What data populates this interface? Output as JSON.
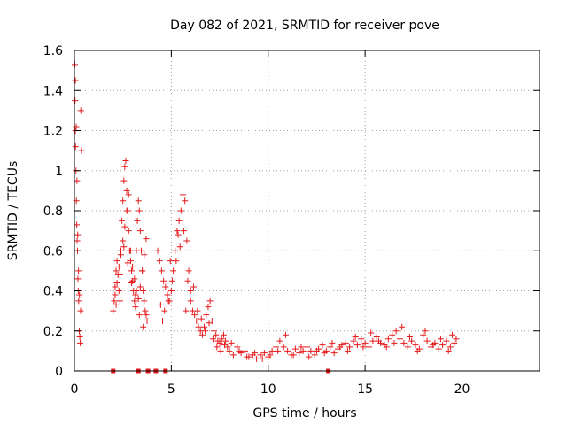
{
  "chart_data": {
    "type": "scatter",
    "title": "Day 082 of 2021, SRMTID for receiver pove",
    "xlabel": "GPS time / hours",
    "ylabel": "SRMTID / TECUs",
    "xlim": [
      0,
      24
    ],
    "ylim": [
      0,
      1.6
    ],
    "xticks": [
      0,
      5,
      10,
      15,
      20
    ],
    "yticks": [
      0,
      0.2,
      0.4,
      0.6,
      0.8,
      1,
      1.2,
      1.4,
      1.6
    ],
    "xtick_labels": [
      "0",
      "5",
      "10",
      "15",
      "20"
    ],
    "ytick_labels": [
      "0",
      "0.2",
      "0.4",
      "0.6",
      "0.8",
      "1",
      "1.2",
      "1.4",
      "1.6"
    ],
    "grid": true,
    "marker": "plus",
    "color": "#e41a1c",
    "series": [
      {
        "x": [
          0.02,
          0.03,
          0.05,
          0.06,
          0.08,
          0.1,
          0.12,
          0.14,
          0.16,
          0.18,
          0.2,
          0.22,
          0.25,
          0.28,
          0.3,
          0.33,
          0.36,
          0.05,
          0.09,
          0.13,
          0.17,
          0.21,
          0.26,
          0.32,
          2.0,
          2.05,
          2.1,
          2.15,
          2.2,
          2.25,
          2.3,
          2.35,
          2.4,
          2.45,
          2.5,
          2.55,
          2.6,
          2.65,
          2.7,
          2.75,
          2.8,
          2.85,
          2.9,
          2.95,
          3.0,
          3.05,
          3.1,
          3.15,
          3.2,
          3.25,
          3.3,
          3.35,
          3.4,
          3.45,
          3.5,
          3.55,
          3.6,
          3.65,
          3.7,
          3.75,
          2.1,
          2.2,
          2.3,
          2.4,
          2.5,
          2.6,
          2.7,
          2.8,
          2.9,
          3.0,
          3.1,
          3.2,
          3.3,
          3.4,
          3.5,
          3.6,
          3.7,
          2.15,
          2.35,
          2.55,
          2.75,
          2.95,
          3.15,
          3.35,
          3.55,
          4.3,
          4.4,
          4.5,
          4.6,
          4.7,
          4.8,
          4.9,
          5.0,
          5.1,
          5.2,
          5.3,
          5.4,
          5.5,
          5.6,
          5.7,
          5.8,
          5.9,
          6.0,
          4.45,
          4.65,
          4.85,
          5.05,
          5.25,
          5.45,
          5.65,
          5.85,
          4.55,
          4.95,
          5.35,
          5.75,
          6.0,
          6.1,
          6.2,
          6.3,
          6.4,
          6.5,
          6.6,
          6.7,
          6.8,
          6.9,
          7.0,
          7.1,
          7.2,
          7.3,
          7.4,
          7.5,
          7.6,
          7.7,
          7.8,
          7.9,
          6.15,
          6.35,
          6.55,
          6.75,
          6.95,
          7.15,
          7.35,
          7.55,
          7.75,
          8.0,
          8.2,
          8.4,
          8.6,
          8.8,
          9.0,
          9.2,
          9.4,
          9.6,
          9.8,
          10.0,
          10.2,
          10.4,
          10.6,
          10.8,
          11.0,
          11.2,
          11.4,
          11.6,
          11.8,
          12.0,
          12.2,
          12.4,
          12.6,
          12.8,
          13.0,
          13.2,
          13.4,
          13.6,
          13.8,
          8.1,
          8.5,
          8.9,
          9.3,
          9.7,
          10.1,
          10.5,
          10.9,
          11.3,
          11.7,
          12.1,
          12.5,
          12.9,
          13.3,
          13.7,
          14.0,
          14.2,
          14.4,
          14.6,
          14.8,
          15.0,
          15.2,
          15.4,
          15.6,
          15.8,
          16.0,
          16.2,
          16.4,
          16.6,
          16.8,
          17.0,
          17.2,
          17.4,
          17.6,
          17.8,
          18.0,
          18.2,
          18.4,
          18.6,
          18.8,
          19.0,
          19.2,
          19.4,
          19.6,
          19.7,
          14.1,
          14.5,
          14.9,
          15.3,
          15.7,
          16.1,
          16.5,
          16.9,
          17.3,
          17.7,
          18.1,
          18.5,
          18.9,
          19.3,
          19.5,
          2.0,
          3.3,
          3.8,
          4.2,
          4.7,
          13.1
        ],
        "y": [
          1.53,
          1.35,
          1.2,
          1.12,
          1.0,
          0.85,
          0.73,
          0.65,
          0.6,
          0.46,
          0.4,
          0.35,
          0.2,
          0.17,
          0.14,
          1.3,
          1.1,
          1.45,
          1.22,
          0.95,
          0.68,
          0.5,
          0.38,
          0.3,
          0.3,
          0.35,
          0.42,
          0.5,
          0.55,
          0.48,
          0.4,
          0.35,
          0.6,
          0.75,
          0.85,
          0.95,
          1.02,
          1.05,
          0.9,
          0.8,
          0.7,
          0.6,
          0.55,
          0.5,
          0.45,
          0.4,
          0.35,
          0.32,
          0.6,
          0.75,
          0.85,
          0.8,
          0.7,
          0.6,
          0.5,
          0.4,
          0.35,
          0.3,
          0.28,
          0.25,
          0.38,
          0.44,
          0.52,
          0.58,
          0.65,
          0.72,
          0.8,
          0.88,
          0.6,
          0.52,
          0.46,
          0.4,
          0.36,
          0.42,
          0.5,
          0.58,
          0.66,
          0.33,
          0.48,
          0.62,
          0.54,
          0.44,
          0.38,
          0.28,
          0.22,
          0.6,
          0.55,
          0.5,
          0.45,
          0.42,
          0.38,
          0.35,
          0.4,
          0.5,
          0.6,
          0.7,
          0.75,
          0.8,
          0.88,
          0.85,
          0.65,
          0.5,
          0.4,
          0.33,
          0.3,
          0.35,
          0.45,
          0.55,
          0.62,
          0.7,
          0.45,
          0.25,
          0.55,
          0.68,
          0.3,
          0.35,
          0.3,
          0.28,
          0.25,
          0.22,
          0.2,
          0.18,
          0.22,
          0.28,
          0.32,
          0.35,
          0.25,
          0.2,
          0.18,
          0.15,
          0.14,
          0.16,
          0.18,
          0.15,
          0.12,
          0.42,
          0.3,
          0.26,
          0.2,
          0.24,
          0.16,
          0.12,
          0.1,
          0.13,
          0.1,
          0.08,
          0.12,
          0.09,
          0.1,
          0.07,
          0.08,
          0.06,
          0.08,
          0.09,
          0.07,
          0.1,
          0.12,
          0.15,
          0.12,
          0.1,
          0.08,
          0.11,
          0.09,
          0.1,
          0.12,
          0.1,
          0.08,
          0.11,
          0.13,
          0.1,
          0.12,
          0.09,
          0.11,
          0.13,
          0.14,
          0.1,
          0.07,
          0.09,
          0.06,
          0.08,
          0.1,
          0.18,
          0.08,
          0.12,
          0.07,
          0.1,
          0.09,
          0.14,
          0.12,
          0.14,
          0.12,
          0.15,
          0.13,
          0.16,
          0.14,
          0.12,
          0.15,
          0.17,
          0.14,
          0.13,
          0.16,
          0.18,
          0.2,
          0.16,
          0.14,
          0.12,
          0.15,
          0.13,
          0.11,
          0.18,
          0.15,
          0.12,
          0.14,
          0.11,
          0.13,
          0.15,
          0.12,
          0.14,
          0.16,
          0.1,
          0.17,
          0.12,
          0.19,
          0.15,
          0.12,
          0.14,
          0.22,
          0.17,
          0.1,
          0.2,
          0.13,
          0.16,
          0.1,
          0.18,
          0,
          0,
          0,
          0,
          0,
          0
        ]
      }
    ]
  }
}
